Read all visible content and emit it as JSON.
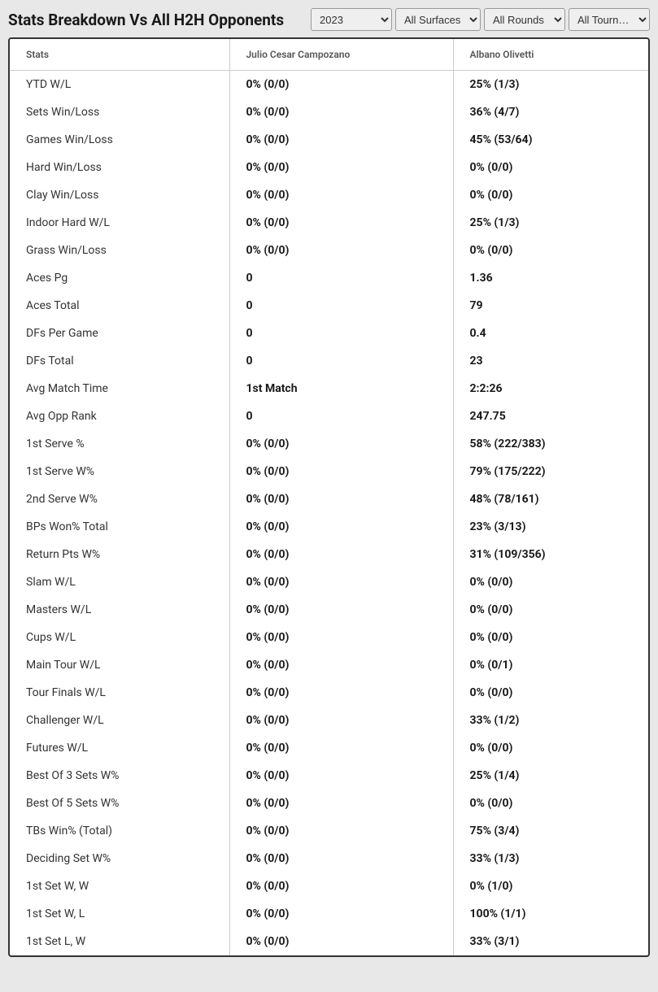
{
  "header": {
    "title": "Stats Breakdown Vs All H2H Opponents"
  },
  "filters": {
    "year": "2023",
    "surface": "All Surfaces",
    "round": "All Rounds",
    "tourn": "All Tourn…"
  },
  "table": {
    "columns": [
      "Stats",
      "Julio Cesar Campozano",
      "Albano Olivetti"
    ],
    "rows": [
      [
        "YTD W/L",
        "0% (0/0)",
        "25% (1/3)"
      ],
      [
        "Sets Win/Loss",
        "0% (0/0)",
        "36% (4/7)"
      ],
      [
        "Games Win/Loss",
        "0% (0/0)",
        "45% (53/64)"
      ],
      [
        "Hard Win/Loss",
        "0% (0/0)",
        "0% (0/0)"
      ],
      [
        "Clay Win/Loss",
        "0% (0/0)",
        "0% (0/0)"
      ],
      [
        "Indoor Hard W/L",
        "0% (0/0)",
        "25% (1/3)"
      ],
      [
        "Grass Win/Loss",
        "0% (0/0)",
        "0% (0/0)"
      ],
      [
        "Aces Pg",
        "0",
        "1.36"
      ],
      [
        "Aces Total",
        "0",
        "79"
      ],
      [
        "DFs Per Game",
        "0",
        "0.4"
      ],
      [
        "DFs Total",
        "0",
        "23"
      ],
      [
        "Avg Match Time",
        "1st Match",
        "2:2:26"
      ],
      [
        "Avg Opp Rank",
        "0",
        "247.75"
      ],
      [
        "1st Serve %",
        "0% (0/0)",
        "58% (222/383)"
      ],
      [
        "1st Serve W%",
        "0% (0/0)",
        "79% (175/222)"
      ],
      [
        "2nd Serve W%",
        "0% (0/0)",
        "48% (78/161)"
      ],
      [
        "BPs Won% Total",
        "0% (0/0)",
        "23% (3/13)"
      ],
      [
        "Return Pts W%",
        "0% (0/0)",
        "31% (109/356)"
      ],
      [
        "Slam W/L",
        "0% (0/0)",
        "0% (0/0)"
      ],
      [
        "Masters W/L",
        "0% (0/0)",
        "0% (0/0)"
      ],
      [
        "Cups W/L",
        "0% (0/0)",
        "0% (0/0)"
      ],
      [
        "Main Tour W/L",
        "0% (0/0)",
        "0% (0/1)"
      ],
      [
        "Tour Finals W/L",
        "0% (0/0)",
        "0% (0/0)"
      ],
      [
        "Challenger W/L",
        "0% (0/0)",
        "33% (1/2)"
      ],
      [
        "Futures W/L",
        "0% (0/0)",
        "0% (0/0)"
      ],
      [
        "Best Of 3 Sets W%",
        "0% (0/0)",
        "25% (1/4)"
      ],
      [
        "Best Of 5 Sets W%",
        "0% (0/0)",
        "0% (0/0)"
      ],
      [
        "TBs Win% (Total)",
        "0% (0/0)",
        "75% (3/4)"
      ],
      [
        "Deciding Set W%",
        "0% (0/0)",
        "33% (1/3)"
      ],
      [
        "1st Set W, W",
        "0% (0/0)",
        "0% (1/0)"
      ],
      [
        "1st Set W, L",
        "0% (0/0)",
        "100% (1/1)"
      ],
      [
        "1st Set L, W",
        "0% (0/0)",
        "33% (3/1)"
      ]
    ]
  }
}
